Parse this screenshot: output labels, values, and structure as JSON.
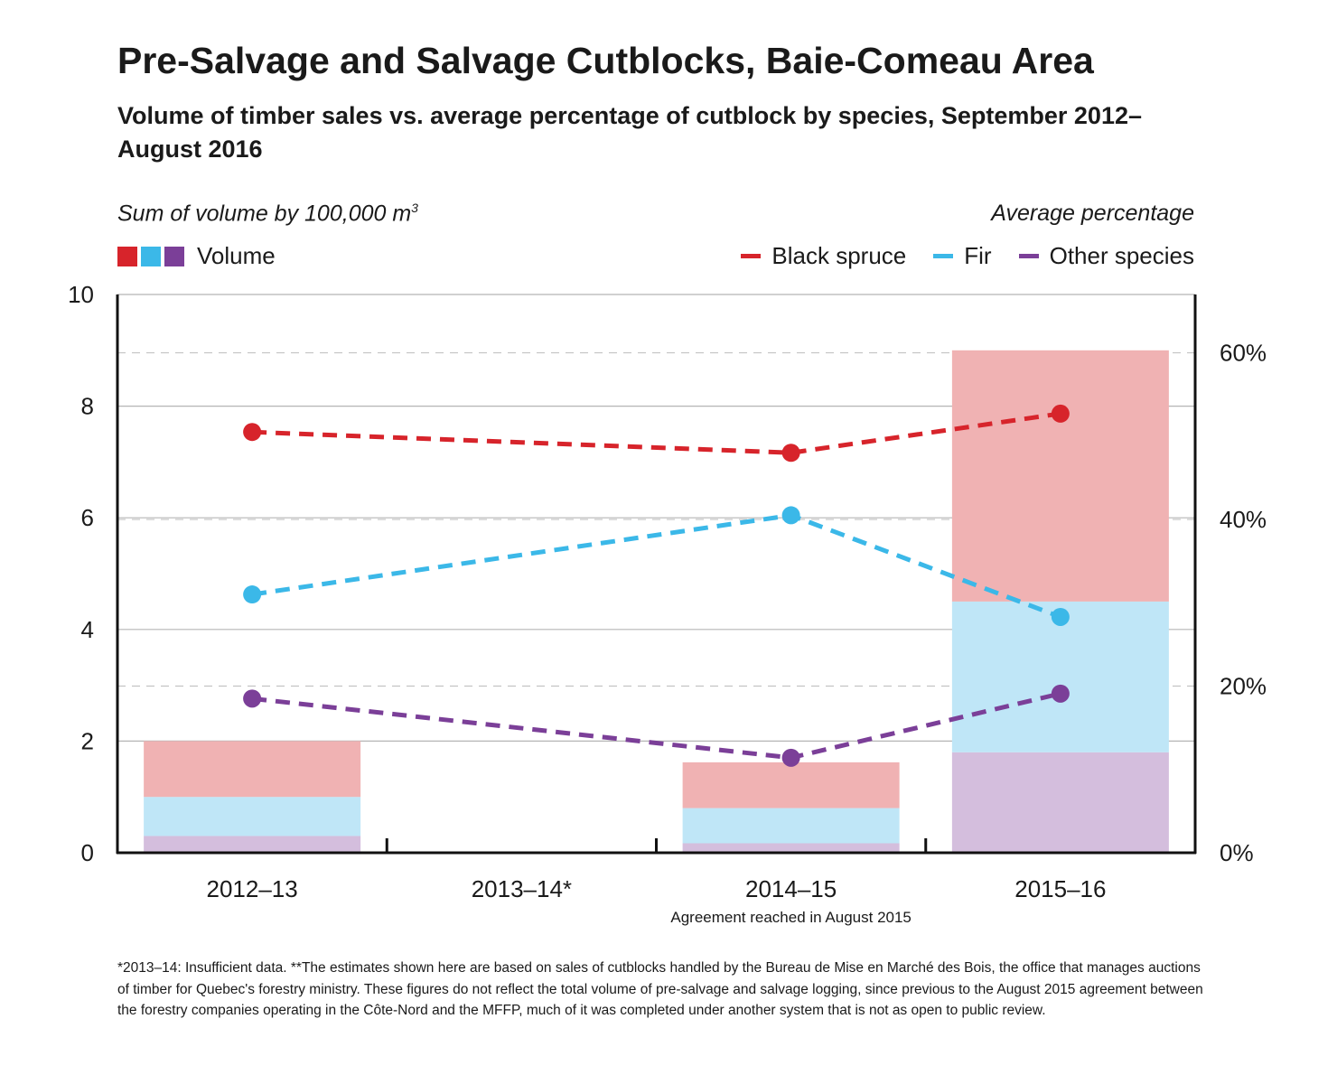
{
  "title": "Pre-Salvage and Salvage Cutblocks, Baie-Comeau Area",
  "subtitle": "Volume of timber sales vs. average percentage of cutblock by species, September 2012–August 2016",
  "left_axis_title": "Sum of volume by 100,000 m",
  "left_axis_title_sup": "3",
  "right_axis_title": "Average percentage",
  "legend": {
    "volume_label": "Volume",
    "black_spruce": "Black spruce",
    "fir": "Fir",
    "other": "Other species"
  },
  "colors": {
    "black_spruce": "#d7242b",
    "fir": "#3bb8e8",
    "other": "#7b3f98",
    "black_spruce_bar": "#f0b2b3",
    "fir_bar": "#bfe6f7",
    "other_bar": "#d4bedd"
  },
  "annotation": "Agreement reached in August 2015",
  "footnote": "*2013–14: Insufficient data. **The estimates shown here are based on sales of cutblocks handled by the Bureau de Mise en Marché des Bois, the office that manages auctions of timber for Quebec's forestry ministry. These figures do not reflect the total volume of pre-salvage and salvage logging, since previous to the August 2015 agreement between the forestry companies operating in the Côte-Nord and the MFFP, much of it was completed under another system that is not as open to public review.",
  "chart_data": {
    "type": "bar",
    "stacked": true,
    "categories": [
      "2012–13",
      "2013–14*",
      "2014–15",
      "2015–16"
    ],
    "ylim_left": [
      0,
      10
    ],
    "yticks_left": [
      0,
      2,
      4,
      6,
      8,
      10
    ],
    "ylim_right": [
      0,
      67
    ],
    "yticks_right": [
      0,
      20,
      40,
      60
    ],
    "yticklabels_right": [
      "0%",
      "20%",
      "40%",
      "60%"
    ],
    "bar_series": [
      {
        "name": "Other species",
        "key": "other",
        "values": [
          0.3,
          null,
          0.17,
          1.8
        ]
      },
      {
        "name": "Fir",
        "key": "fir",
        "values": [
          0.7,
          null,
          0.63,
          2.7
        ]
      },
      {
        "name": "Black spruce",
        "key": "black_spruce",
        "values": [
          1.0,
          null,
          0.82,
          4.5
        ]
      }
    ],
    "line_series": [
      {
        "name": "Black spruce",
        "key": "black_spruce",
        "values": [
          50.5,
          null,
          48.0,
          52.7
        ]
      },
      {
        "name": "Fir",
        "key": "fir",
        "values": [
          31.0,
          null,
          40.5,
          28.3
        ]
      },
      {
        "name": "Other species",
        "key": "other",
        "values": [
          18.5,
          null,
          11.4,
          19.1
        ]
      }
    ]
  }
}
